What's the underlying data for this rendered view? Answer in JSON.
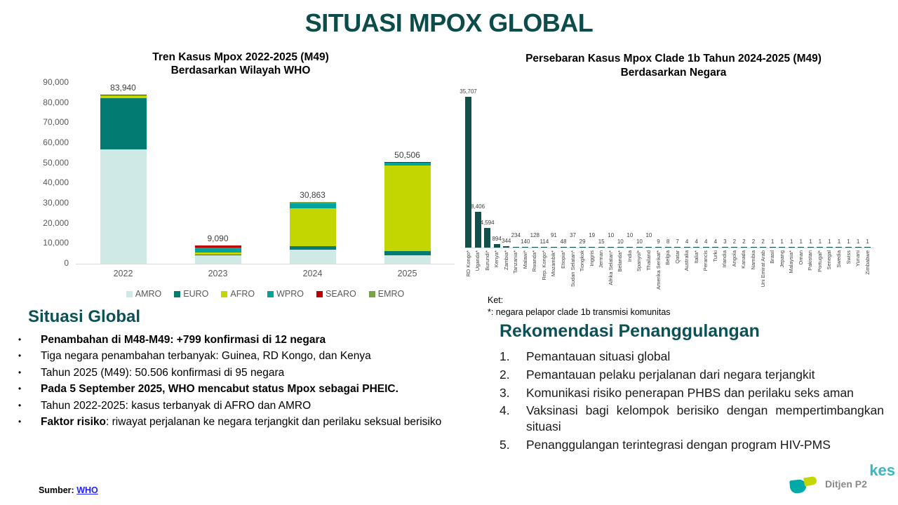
{
  "title": "SITUASI MPOX GLOBAL",
  "chart_data": [
    {
      "type": "bar",
      "stacked": true,
      "title": "Tren Kasus Mpox 2022-2025 (M49) Berdasarkan Wilayah WHO",
      "title_lines": [
        "Tren Kasus Mpox 2022-2025 (M49)",
        "Berdasarkan Wilayah WHO"
      ],
      "categories": [
        "2022",
        "2023",
        "2024",
        "2025"
      ],
      "totals": [
        83940,
        9090,
        30863,
        50506
      ],
      "total_labels": [
        "83,940",
        "9,090",
        "30,863",
        "50,506"
      ],
      "series": [
        {
          "name": "AMRO",
          "color": "#cfe9e6",
          "values": [
            57000,
            4300,
            6900,
            4000
          ]
        },
        {
          "name": "EURO",
          "color": "#027c72",
          "values": [
            25400,
            350,
            1900,
            2400
          ]
        },
        {
          "name": "AFRO",
          "color": "#c3d600",
          "values": [
            1300,
            900,
            18800,
            42300
          ]
        },
        {
          "name": "WPRO",
          "color": "#00a49d",
          "values": [
            150,
            2600,
            2400,
            1700
          ]
        },
        {
          "name": "SEARO",
          "color": "#c00000",
          "values": [
            60,
            750,
            100,
            50
          ]
        },
        {
          "name": "EMRO",
          "color": "#76a343",
          "values": [
            30,
            190,
            763,
            56
          ]
        }
      ],
      "ylim": [
        0,
        90000
      ],
      "ytick_step": 10000,
      "grid": false,
      "legend_position": "bottom"
    },
    {
      "type": "bar",
      "title": "Persebaran Kasus Mpox Clade 1b Tahun 2024-2025 (M49) Berdasarkan Negara",
      "title_lines": [
        "Persebaran Kasus Mpox Clade 1b Tahun 2024-2025 (M49)",
        "Berdasarkan Negara"
      ],
      "categories": [
        "RD Kongo*",
        "Uganda*",
        "Burundi*",
        "Kenya*",
        "Zambia*",
        "Tanzania*",
        "Malawi*",
        "Rwanda*",
        "Rep. Kongo*",
        "Mozambik*",
        "Etiopia*",
        "Sudan Selatan*",
        "Tiongkok",
        "Inggris",
        "Jerman",
        "Afrika Selatan*",
        "Belanda*",
        "India",
        "Spanyol*",
        "Thailand",
        "Amerika Serikat*",
        "Belgia",
        "Qatar",
        "Australia",
        "Italia*",
        "Perancis",
        "Turki",
        "Irlandia",
        "Angola",
        "Kanada",
        "Namibia",
        "Uni Emirat Arab",
        "Brasil",
        "Jepang",
        "Malaysia*",
        "Oman",
        "Pakistan",
        "Portugal*",
        "Senegal",
        "Swedia",
        "Swiss",
        "Yunani",
        "Zimbabwe"
      ],
      "values": [
        35707,
        8406,
        4594,
        894,
        344,
        234,
        140,
        128,
        114,
        91,
        48,
        37,
        29,
        19,
        15,
        10,
        10,
        10,
        10,
        10,
        9,
        8,
        7,
        4,
        4,
        4,
        4,
        3,
        2,
        2,
        2,
        2,
        1,
        1,
        1,
        1,
        1,
        1,
        1,
        1,
        1,
        1,
        1
      ],
      "value_labels": [
        "35,707",
        "8,406",
        "4,594",
        "894",
        "344",
        "234",
        "140",
        "128",
        "114",
        "91",
        "48",
        "37",
        "29",
        "19",
        "15",
        "10",
        "10",
        "10",
        "10",
        "10",
        "9",
        "8",
        "7",
        "4",
        "4",
        "4",
        "4",
        "3",
        "2",
        "2",
        "2",
        "2",
        "1",
        "1",
        "1",
        "1",
        "1",
        "1",
        "1",
        "1",
        "1",
        "1",
        "1"
      ],
      "bar_color": "#11504b",
      "ylim": [
        0,
        36000
      ],
      "grid": false,
      "note_title": "Ket:",
      "note": "*: negara pelapor clade 1b transmisi komunitas"
    }
  ],
  "situasi_global": {
    "heading": "Situasi Global",
    "bullets": [
      {
        "bold": true,
        "text": "Penambahan di M48-M49: +799 konfirmasi di 12 negara"
      },
      {
        "bold": false,
        "text": "Tiga negara penambahan terbanyak: Guinea, RD Kongo, dan Kenya"
      },
      {
        "bold": false,
        "text": "Tahun 2025 (M49): 50.506 konfirmasi di 95 negara"
      },
      {
        "bold": true,
        "text": "Pada 5 September 2025, WHO mencabut status Mpox sebagai PHEIC."
      },
      {
        "bold": false,
        "text": "Tahun 2022-2025: kasus terbanyak di AFRO dan AMRO"
      },
      {
        "bold": false,
        "bold_prefix": "Faktor risiko",
        "text": ": riwayat perjalanan ke negara terjangkit dan perilaku seksual berisiko",
        "justify": true
      }
    ]
  },
  "rekomendasi": {
    "heading": "Rekomendasi Penanggulangan",
    "items": [
      "Pemantauan situasi global",
      "Pemantauan pelaku perjalanan dari negara terjangkit",
      "Komunikasi risiko penerapan PHBS dan perilaku seks aman",
      "Vaksinasi bagi kelompok berisiko dengan mempertimbangkan situasi",
      "Penanggulangan terintegrasi dengan program HIV-PMS"
    ]
  },
  "footer": {
    "source_label": "Sumber:",
    "source_link": "WHO",
    "logo_label": "Ditjen P2",
    "corner_label": "kes"
  },
  "colors": {
    "title_teal": "#0c4c4a",
    "heading_teal": "#0b5156",
    "link_blue": "#1f1fff",
    "axis_text": "#595959",
    "value_text": "#404040",
    "baseline_gray": "#d9d9d9"
  }
}
